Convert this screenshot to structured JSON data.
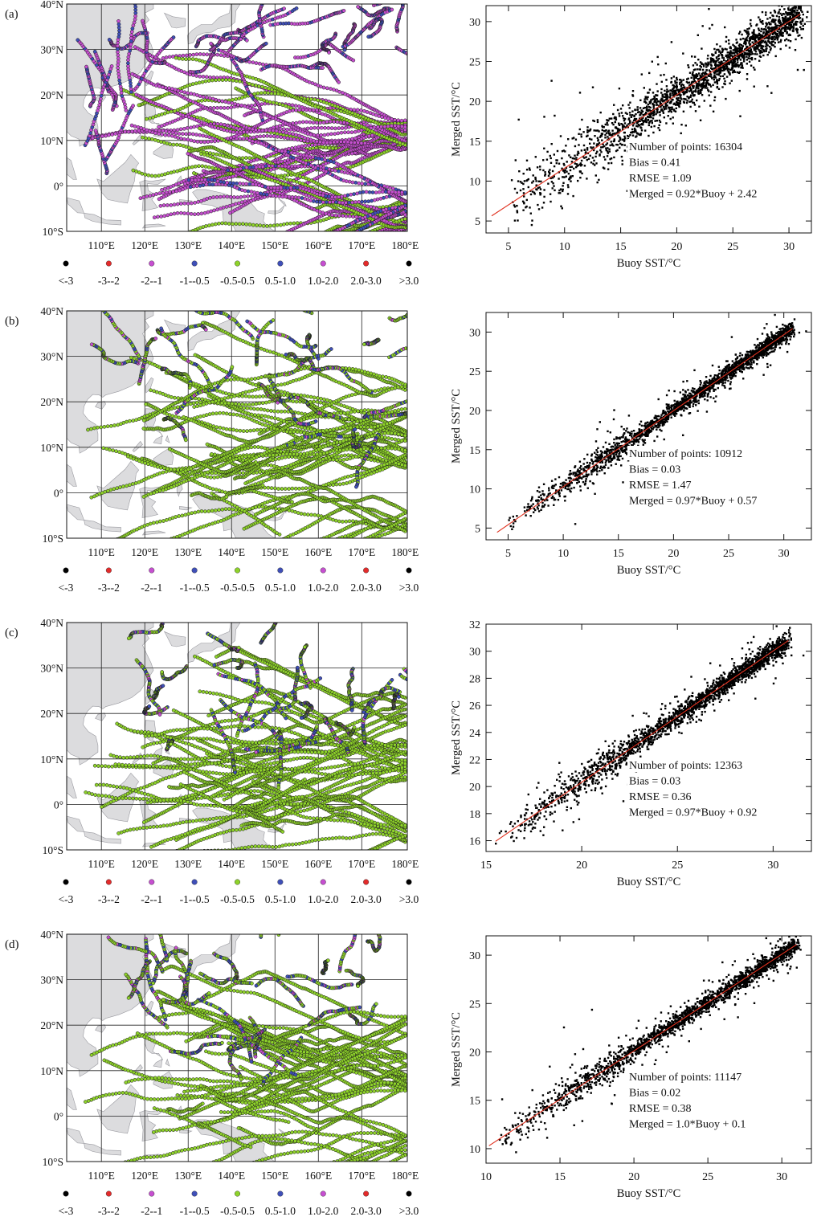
{
  "figure": {
    "panels": [
      {
        "label": "(a)",
        "map": {
          "lat_labels": [
            "40°N",
            "30°N",
            "20°N",
            "10°N",
            "0°",
            "10°S"
          ],
          "lon_labels": [
            "110°E",
            "120°E",
            "130°E",
            "140°E",
            "150°E",
            "160°E",
            "170°E",
            "180°E"
          ],
          "dominant_colors": [
            "#c64fd0",
            "#3f4fb8",
            "#8ed22a"
          ]
        },
        "legend": {
          "labels": [
            "<-3",
            "-3--2",
            "-2--1",
            "-1--0.5",
            "-0.5-0.5",
            "0.5-1.0",
            "1.0-2.0",
            "2.0-3.0",
            ">3.0"
          ],
          "colors": [
            "#000000",
            "#e32b2b",
            "#c64fd0",
            "#3f4fb8",
            "#8ed22a",
            "#3f4fb8",
            "#c64fd0",
            "#e32b2b",
            "#000000"
          ]
        },
        "scatter": {
          "stats": [
            "Number of points: 16304",
            "Bias = 0.41",
            "RMSE = 1.09",
            "Merged = 0.92*Buoy + 2.42"
          ]
        }
      },
      {
        "label": "(b)",
        "map": {
          "lat_labels": [
            "40°N",
            "30°N",
            "20°N",
            "10°N",
            "0°",
            "10°S"
          ],
          "lon_labels": [
            "110°E",
            "120°E",
            "130°E",
            "140°E",
            "150°E",
            "160°E",
            "170°E",
            "180°E"
          ],
          "dominant_colors": [
            "#8ed22a",
            "#3f4fb8"
          ]
        },
        "legend": {
          "labels": [
            "<-3",
            "-3--2",
            "-2--1",
            "-1--0.5",
            "-0.5-0.5",
            "0.5-1.0",
            "1.0-2.0",
            "2.0-3.0",
            ">3.0"
          ],
          "colors": [
            "#000000",
            "#e32b2b",
            "#c64fd0",
            "#3f4fb8",
            "#8ed22a",
            "#3f4fb8",
            "#c64fd0",
            "#e32b2b",
            "#000000"
          ]
        },
        "scatter": {
          "stats": [
            "Number of points: 10912",
            "Bias = 0.03",
            "RMSE = 1.47",
            "Merged = 0.97*Buoy + 0.57"
          ]
        }
      },
      {
        "label": "(c)",
        "map": {
          "lat_labels": [
            "40°N",
            "30°N",
            "20°N",
            "10°N",
            "0°",
            "10°S"
          ],
          "lon_labels": [
            "110°E",
            "120°E",
            "130°E",
            "140°E",
            "150°E",
            "160°E",
            "170°E",
            "180°E"
          ],
          "dominant_colors": [
            "#8ed22a",
            "#3f4fb8"
          ]
        },
        "legend": {
          "labels": [
            "<-3",
            "-3--2",
            "-2--1",
            "-1--0.5",
            "-0.5-0.5",
            "0.5-1.0",
            "1.0-2.0",
            "2.0-3.0",
            ">3.0"
          ],
          "colors": [
            "#000000",
            "#e32b2b",
            "#c64fd0",
            "#3f4fb8",
            "#8ed22a",
            "#3f4fb8",
            "#c64fd0",
            "#e32b2b",
            "#000000"
          ]
        },
        "scatter": {
          "stats": [
            "Number of points: 12363",
            "Bias = 0.03",
            "RMSE = 0.36",
            "Merged = 0.97*Buoy + 0.92"
          ]
        }
      },
      {
        "label": "(d)",
        "map": {
          "lat_labels": [
            "40°N",
            "30°N",
            "20°N",
            "10°N",
            "0°",
            "10°S"
          ],
          "lon_labels": [
            "110°E",
            "120°E",
            "130°E",
            "140°E",
            "150°E",
            "160°E",
            "170°E",
            "180°E"
          ],
          "dominant_colors": [
            "#8ed22a",
            "#3f4fb8"
          ]
        },
        "legend": {
          "labels": [
            "<-3",
            "-3--2",
            "-2--1",
            "-1--0.5",
            "-0.5-0.5",
            "0.5-1.0",
            "1.0-2.0",
            "2.0-3.0",
            ">3.0"
          ],
          "colors": [
            "#000000",
            "#e32b2b",
            "#c64fd0",
            "#3f4fb8",
            "#8ed22a",
            "#3f4fb8",
            "#c64fd0",
            "#e32b2b",
            "#000000"
          ]
        },
        "scatter": {
          "stats": [
            "Number of points: 11147",
            "Bias = 0.02",
            "RMSE = 0.38",
            "Merged = 1.0*Buoy + 0.1"
          ]
        }
      }
    ]
  },
  "chart_data": [
    {
      "type": "scatter",
      "panel": "(a)",
      "title": "",
      "xlabel": "Buoy SST/°C",
      "ylabel": "Merged SST/°C",
      "xlim": [
        3,
        32
      ],
      "ylim": [
        3.5,
        32
      ],
      "xticks": [
        5,
        10,
        15,
        20,
        25,
        30
      ],
      "yticks": [
        5,
        10,
        15,
        20,
        25,
        30
      ],
      "n_points": 16304,
      "bias": 0.41,
      "rmse": 1.09,
      "fit_line": {
        "slope": 0.92,
        "intercept": 2.42,
        "x_range": [
          3.5,
          31
        ],
        "color": "#e0301e"
      },
      "point_color": "#000000",
      "dense_core": {
        "x_range": [
          4.5,
          31
        ],
        "spread": 1.1
      },
      "scattered_outliers": true
    },
    {
      "type": "scatter",
      "panel": "(b)",
      "title": "",
      "xlabel": "Buoy SST/°C",
      "ylabel": "Merged SST/°C",
      "xlim": [
        3,
        32.5
      ],
      "ylim": [
        3.5,
        32.5
      ],
      "xticks": [
        5,
        10,
        15,
        20,
        25,
        30
      ],
      "yticks": [
        5,
        10,
        15,
        20,
        25,
        30
      ],
      "n_points": 10912,
      "bias": 0.03,
      "rmse": 1.47,
      "fit_line": {
        "slope": 0.97,
        "intercept": 0.57,
        "x_range": [
          4,
          30.8
        ],
        "color": "#e0301e"
      },
      "point_color": "#000000",
      "dense_core": {
        "x_range": [
          4.5,
          30.8
        ],
        "spread": 0.45
      },
      "scattered_outliers": true
    },
    {
      "type": "scatter",
      "panel": "(c)",
      "title": "",
      "xlabel": "Buoy SST/°C",
      "ylabel": "Merged SST/°C",
      "xlim": [
        15,
        32
      ],
      "ylim": [
        15.2,
        32
      ],
      "xticks": [
        15,
        20,
        25,
        30
      ],
      "yticks": [
        16,
        18,
        20,
        22,
        24,
        26,
        28,
        30,
        32
      ],
      "n_points": 12363,
      "bias": 0.03,
      "rmse": 0.36,
      "fit_line": {
        "slope": 0.97,
        "intercept": 0.92,
        "x_range": [
          15.5,
          30.8
        ],
        "color": "#e0301e"
      },
      "point_color": "#000000",
      "dense_core": {
        "x_range": [
          15.5,
          30.8
        ],
        "spread": 0.35
      },
      "scattered_outliers": true
    },
    {
      "type": "scatter",
      "panel": "(d)",
      "title": "",
      "xlabel": "Buoy SST/°C",
      "ylabel": "Merged SST/°C",
      "xlim": [
        10,
        32
      ],
      "ylim": [
        8.5,
        32
      ],
      "xticks": [
        10,
        15,
        20,
        25,
        30
      ],
      "yticks": [
        10,
        15,
        20,
        25,
        30
      ],
      "n_points": 11147,
      "bias": 0.02,
      "rmse": 0.38,
      "fit_line": {
        "slope": 1.0,
        "intercept": 0.1,
        "x_range": [
          10.2,
          31
        ],
        "color": "#e0301e"
      },
      "point_color": "#000000",
      "dense_core": {
        "x_range": [
          10.5,
          31
        ],
        "spread": 0.4
      },
      "scattered_outliers": true
    }
  ]
}
